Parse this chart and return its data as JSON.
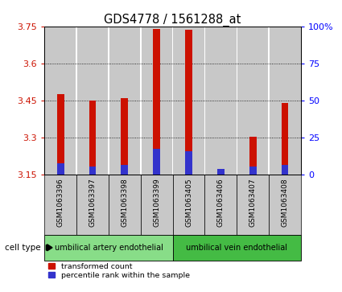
{
  "title": "GDS4778 / 1561288_at",
  "samples": [
    "GSM1063396",
    "GSM1063397",
    "GSM1063398",
    "GSM1063399",
    "GSM1063405",
    "GSM1063406",
    "GSM1063407",
    "GSM1063408"
  ],
  "red_values": [
    3.475,
    3.45,
    3.46,
    3.74,
    3.735,
    3.165,
    3.305,
    3.44
  ],
  "blue_values": [
    3.195,
    3.185,
    3.19,
    3.255,
    3.245,
    3.175,
    3.185,
    3.19
  ],
  "baseline": 3.15,
  "ylim_left": [
    3.15,
    3.75
  ],
  "ylim_right": [
    0,
    100
  ],
  "yticks_left": [
    3.15,
    3.3,
    3.45,
    3.6,
    3.75
  ],
  "yticks_right": [
    0,
    25,
    50,
    75,
    100
  ],
  "ytick_labels_left": [
    "3.15",
    "3.3",
    "3.45",
    "3.6",
    "3.75"
  ],
  "ytick_labels_right": [
    "0",
    "25",
    "50",
    "75",
    "100%"
  ],
  "bar_color_red": "#cc1100",
  "bar_color_blue": "#3333cc",
  "bar_bg_color": "#c8c8c8",
  "white_color": "#ffffff",
  "cell_groups": [
    {
      "label": "umbilical artery endothelial",
      "indices": [
        0,
        1,
        2,
        3
      ],
      "color": "#88dd88"
    },
    {
      "label": "umbilical vein endothelial",
      "indices": [
        4,
        5,
        6,
        7
      ],
      "color": "#44bb44"
    }
  ],
  "cell_type_label": "cell type",
  "legend_red": "transformed count",
  "legend_blue": "percentile rank within the sample",
  "title_fontsize": 10.5,
  "tick_fontsize": 8,
  "sample_fontsize": 6.5
}
